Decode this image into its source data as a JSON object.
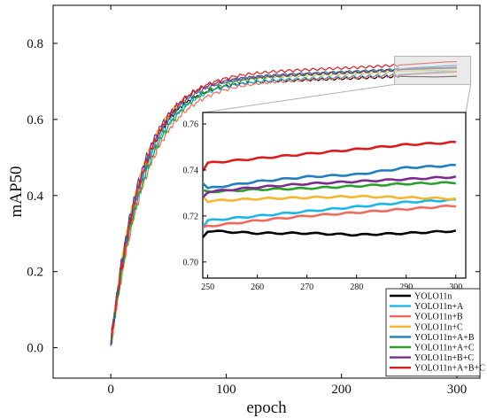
{
  "chart_data": {
    "type": "line",
    "xlabel": "epoch",
    "ylabel": "mAP50",
    "xlim": [
      -50,
      320
    ],
    "ylim": [
      -0.08,
      0.9
    ],
    "x_ticks": [
      0,
      100,
      200,
      300
    ],
    "x_tick_labels": [
      "0",
      "100",
      "200",
      "300"
    ],
    "y_ticks": [
      0.0,
      0.2,
      0.4,
      0.6,
      0.8
    ],
    "y_tick_labels": [
      "0.0",
      "0.2",
      "0.4",
      "0.6",
      "0.8"
    ],
    "epochs_range": [
      0,
      300
    ],
    "legend_position": "bottom-right",
    "series": [
      {
        "name": "YOLO11n",
        "color": "#000000",
        "values_at": {
          "250": 0.7135,
          "260": 0.7125,
          "270": 0.7125,
          "280": 0.7118,
          "290": 0.7125,
          "300": 0.7135
        }
      },
      {
        "name": "YOLO11n+A",
        "color": "#1ab8e8",
        "values_at": {
          "250": 0.718,
          "260": 0.72,
          "270": 0.722,
          "280": 0.724,
          "290": 0.726,
          "300": 0.727
        }
      },
      {
        "name": "YOLO11n+B",
        "color": "#f06b5e",
        "values_at": {
          "250": 0.7155,
          "260": 0.718,
          "270": 0.72,
          "280": 0.7215,
          "290": 0.723,
          "300": 0.7245
        }
      },
      {
        "name": "YOLO11n+C",
        "color": "#f5b730",
        "values_at": {
          "250": 0.7265,
          "260": 0.7275,
          "270": 0.728,
          "280": 0.7285,
          "290": 0.728,
          "300": 0.7275
        }
      },
      {
        "name": "YOLO11n+A+B",
        "color": "#1f7fbf",
        "values_at": {
          "250": 0.732,
          "260": 0.735,
          "270": 0.737,
          "280": 0.738,
          "290": 0.741,
          "300": 0.742
        }
      },
      {
        "name": "YOLO11n+A+C",
        "color": "#2ca02c",
        "values_at": {
          "250": 0.7305,
          "260": 0.7315,
          "270": 0.732,
          "280": 0.733,
          "290": 0.734,
          "300": 0.7345
        }
      },
      {
        "name": "YOLO11n+B+C",
        "color": "#7b2d8e",
        "values_at": {
          "250": 0.7305,
          "260": 0.7325,
          "270": 0.734,
          "280": 0.735,
          "290": 0.736,
          "300": 0.737
        }
      },
      {
        "name": "YOLO11n+A+B+C",
        "color": "#dd1c1c",
        "values_at": {
          "250": 0.743,
          "260": 0.745,
          "270": 0.747,
          "280": 0.749,
          "290": 0.751,
          "300": 0.752
        }
      }
    ],
    "inset": {
      "xlim": [
        249,
        302
      ],
      "ylim": [
        0.693,
        0.765
      ],
      "x_ticks": [
        250,
        260,
        270,
        280,
        290,
        300
      ],
      "x_tick_labels": [
        "250",
        "260",
        "270",
        "280",
        "290",
        "300"
      ],
      "y_ticks": [
        0.7,
        0.72,
        0.74,
        0.76
      ],
      "y_tick_labels": [
        "0.70",
        "0.72",
        "0.74",
        "0.76"
      ]
    }
  }
}
